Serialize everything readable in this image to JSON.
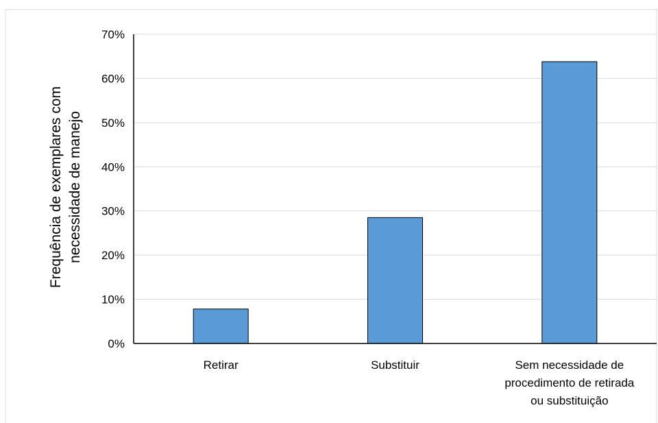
{
  "chart_data": {
    "type": "bar",
    "title": "",
    "xlabel": "",
    "ylabel": [
      "Frequência de exemplares com",
      "necessidade  de manejo"
    ],
    "categories": [
      [
        "Retirar"
      ],
      [
        "Substituir"
      ],
      [
        "Sem necessidade de",
        "procedimento de retirada",
        "ou substituição"
      ]
    ],
    "values": [
      0.078,
      0.285,
      0.638
    ],
    "ylim": [
      0,
      0.7
    ],
    "yticks": [
      0,
      0.1,
      0.2,
      0.3,
      0.4,
      0.5,
      0.6,
      0.7
    ],
    "ytick_labels": [
      "0%",
      "10%",
      "20%",
      "30%",
      "40%",
      "50%",
      "60%",
      "70%"
    ],
    "grid": true,
    "legend": "none",
    "colors": {
      "bar_fill": "#5b9bd5",
      "bar_stroke": "#000000",
      "grid": "#d9d9d9",
      "axis": "#000000",
      "frame": "#d9d9d9"
    }
  }
}
